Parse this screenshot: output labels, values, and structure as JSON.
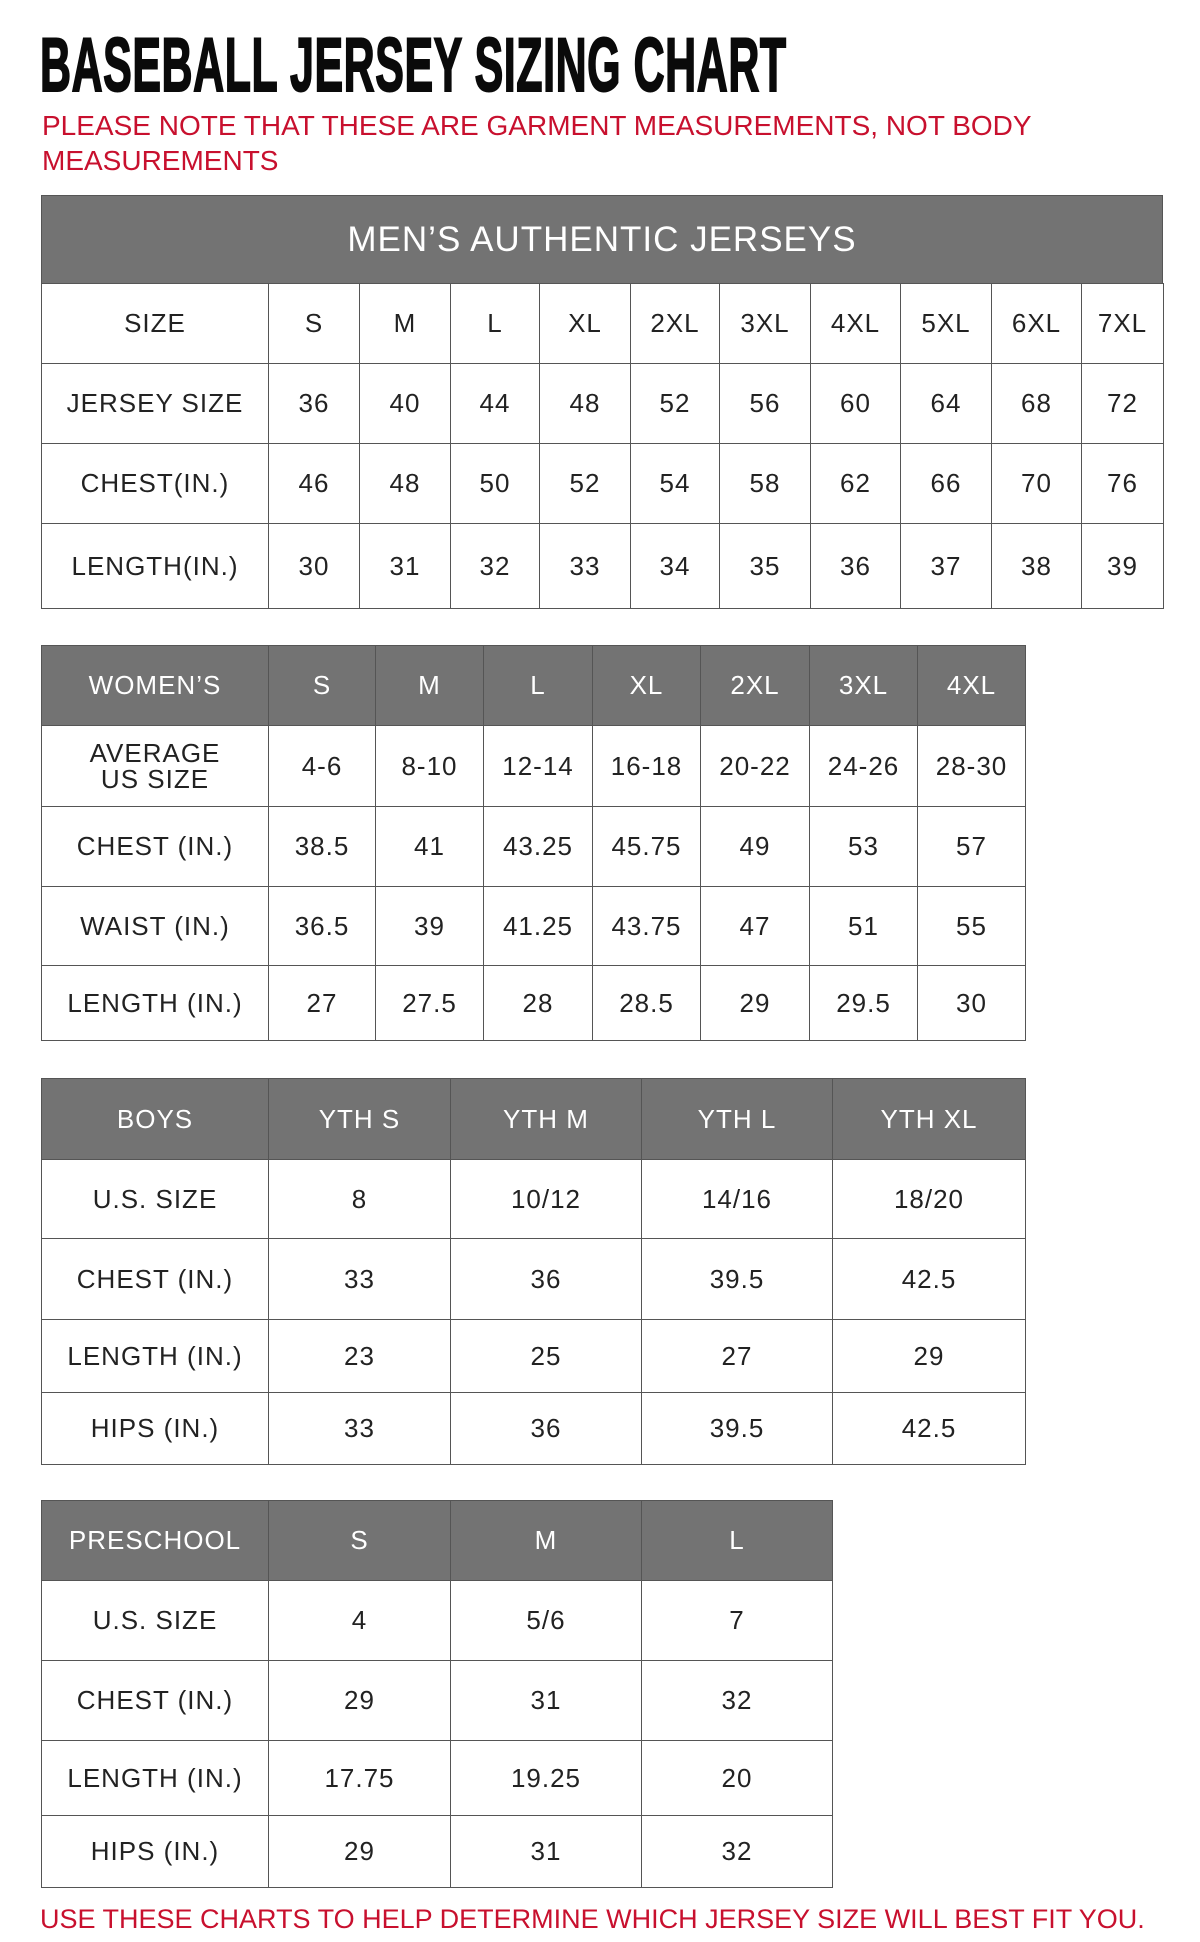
{
  "title": "BASEBALL JERSEY SIZING CHART",
  "note": "PLEASE NOTE THAT THESE ARE GARMENT MEASUREMENTS, NOT BODY MEASUREMENTS",
  "footer": "USE THESE CHARTS TO HELP DETERMINE WHICH JERSEY SIZE WILL BEST FIT YOU.",
  "colors": {
    "header_bg": "#737373",
    "note_red": "#c8102e"
  },
  "mens": {
    "banner": "MEN’S AUTHENTIC JERSEYS",
    "header": [
      "SIZE",
      "S",
      "M",
      "L",
      "XL",
      "2XL",
      "3XL",
      "4XL",
      "5XL",
      "6XL",
      "7XL"
    ],
    "rows": [
      [
        "JERSEY SIZE",
        "36",
        "40",
        "44",
        "48",
        "52",
        "56",
        "60",
        "64",
        "68",
        "72"
      ],
      [
        "CHEST(IN.)",
        "46",
        "48",
        "50",
        "52",
        "54",
        "58",
        "62",
        "66",
        "70",
        "76"
      ],
      [
        "LENGTH(IN.)",
        "30",
        "31",
        "32",
        "33",
        "34",
        "35",
        "36",
        "37",
        "38",
        "39"
      ]
    ]
  },
  "womens": {
    "header": [
      "WOMEN’S",
      "S",
      "M",
      "L",
      "XL",
      "2XL",
      "3XL",
      "4XL"
    ],
    "rows": [
      [
        "AVERAGE US SIZE",
        "4-6",
        "8-10",
        "12-14",
        "16-18",
        "20-22",
        "24-26",
        "28-30"
      ],
      [
        "CHEST (IN.)",
        "38.5",
        "41",
        "43.25",
        "45.75",
        "49",
        "53",
        "57"
      ],
      [
        "WAIST (IN.)",
        "36.5",
        "39",
        "41.25",
        "43.75",
        "47",
        "51",
        "55"
      ],
      [
        "LENGTH (IN.)",
        "27",
        "27.5",
        "28",
        "28.5",
        "29",
        "29.5",
        "30"
      ]
    ]
  },
  "boys": {
    "header": [
      "BOYS",
      "YTH S",
      "YTH M",
      "YTH L",
      "YTH XL"
    ],
    "rows": [
      [
        "U.S. SIZE",
        "8",
        "10/12",
        "14/16",
        "18/20"
      ],
      [
        "CHEST (IN.)",
        "33",
        "36",
        "39.5",
        "42.5"
      ],
      [
        "LENGTH (IN.)",
        "23",
        "25",
        "27",
        "29"
      ],
      [
        "HIPS (IN.)",
        "33",
        "36",
        "39.5",
        "42.5"
      ]
    ]
  },
  "preschool": {
    "header": [
      "PRESCHOOL",
      "S",
      "M",
      "L"
    ],
    "rows": [
      [
        "U.S. SIZE",
        "4",
        "5/6",
        "7"
      ],
      [
        "CHEST (IN.)",
        "29",
        "31",
        "32"
      ],
      [
        "LENGTH (IN.)",
        "17.75",
        "19.25",
        "20"
      ],
      [
        "HIPS (IN.)",
        "29",
        "31",
        "32"
      ]
    ]
  }
}
